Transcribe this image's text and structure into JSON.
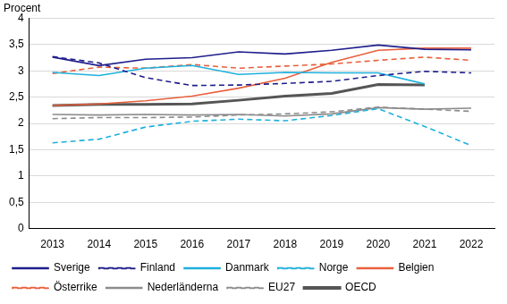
{
  "chart_data": {
    "type": "line",
    "y_label": "Procent",
    "categories": [
      "2013",
      "2014",
      "2015",
      "2016",
      "2017",
      "2018",
      "2019",
      "2020",
      "2021",
      "2022"
    ],
    "ylim": [
      0,
      4
    ],
    "yticks": [
      0,
      {
        "value": 0.5,
        "label": "0,5"
      },
      1,
      {
        "value": 1.5,
        "label": "1,5"
      },
      2,
      {
        "value": 2.5,
        "label": "2,5"
      },
      3,
      {
        "value": 3.5,
        "label": "3,5"
      },
      4
    ],
    "grid": true,
    "legend": "bottom",
    "series": [
      {
        "name": "Sverige",
        "color": "#1e1e8c",
        "line_style": "solid",
        "values": [
          3.26,
          3.1,
          3.22,
          3.25,
          3.36,
          3.32,
          3.39,
          3.49,
          3.41,
          3.4
        ]
      },
      {
        "name": "Finland",
        "color": "#1e1e8c",
        "line_style": "dashed",
        "values": [
          3.27,
          3.15,
          2.87,
          2.72,
          2.73,
          2.76,
          2.8,
          2.91,
          2.99,
          2.96
        ]
      },
      {
        "name": "Danmark",
        "color": "#1eb0dc",
        "line_style": "solid",
        "values": [
          2.97,
          2.91,
          3.05,
          3.1,
          2.93,
          2.97,
          2.96,
          2.96,
          2.75,
          null
        ]
      },
      {
        "name": "Norge",
        "color": "#1eb0dc",
        "line_style": "dashed",
        "values": [
          1.63,
          1.7,
          1.93,
          2.04,
          2.08,
          2.05,
          2.15,
          2.28,
          1.94,
          1.58
        ]
      },
      {
        "name": "Belgien",
        "color": "#e8603c",
        "line_style": "solid",
        "values": [
          2.34,
          2.37,
          2.43,
          2.52,
          2.67,
          2.86,
          3.16,
          3.39,
          3.43,
          3.43
        ]
      },
      {
        "name": "Österrike",
        "color": "#e8603c",
        "line_style": "dashed",
        "values": [
          2.95,
          3.07,
          3.05,
          3.12,
          3.05,
          3.09,
          3.13,
          3.2,
          3.26,
          3.2
        ]
      },
      {
        "name": "Nederländerna",
        "color": "#8c8c8c",
        "line_style": "solid",
        "values": [
          2.17,
          2.16,
          2.17,
          2.16,
          2.17,
          2.14,
          2.18,
          2.3,
          2.27,
          2.29
        ]
      },
      {
        "name": "EU27",
        "color": "#8c8c8c",
        "line_style": "dashed",
        "values": [
          2.09,
          2.11,
          2.11,
          2.12,
          2.16,
          2.18,
          2.22,
          2.31,
          2.27,
          2.23
        ]
      },
      {
        "name": "OECD",
        "color": "#555555",
        "line_style": "thick",
        "values": [
          2.34,
          2.36,
          2.36,
          2.37,
          2.44,
          2.52,
          2.57,
          2.74,
          2.73,
          null
        ]
      }
    ]
  }
}
